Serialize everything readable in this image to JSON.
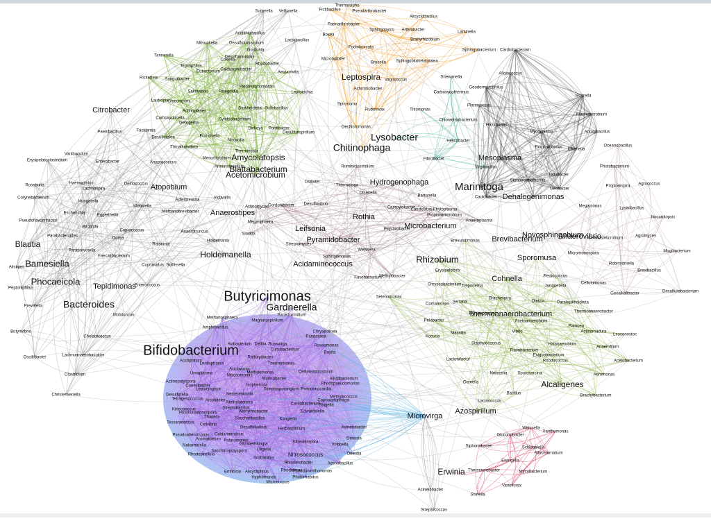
{
  "clusters": [
    {
      "color": "#7fb539",
      "labels": [
        "Acidithiobacillus",
        "Mitsuokella",
        "Desulfotomaculum",
        "Gordonia",
        "Tannerella",
        "Tepidiphilus",
        "Coxiella",
        "Desulfonauticus",
        "Rickettsia",
        "Sanguibacter",
        "Eubacterium",
        "Caldicoprobacter",
        "Rhodobacter",
        "Aequorivita",
        "Salinivibrio",
        "Finegoldia",
        "Pleomorphomonas",
        "Leptotrichia",
        "Lautropia",
        "Glycomyces",
        "Burkholderia",
        "Sulfobacillus",
        "Actinoplanes",
        "Carboxydocella",
        "Symbiobacterium",
        "Georgenia",
        "Dickeya",
        "Pontibacter",
        "Desulfurispirillum",
        "Francisella",
        "Nocardia",
        "Desulfotalea",
        "Thioalkalivibrio",
        "Thermincola",
        "Mesorhizobium",
        "Aneurinibacillus",
        "Amycolatopsis",
        "Blattabacterium",
        "Acetomicrobium"
      ]
    },
    {
      "color": "#f0a030",
      "labels": [
        "Thermosipho",
        "Fictibacillus",
        "Pseudarthrobacter",
        "Paenarthrobacter",
        "Sphingopyxis",
        "Bosea",
        "Arthrobacter",
        "Fodinicurvata",
        "Alicyclobacillus",
        "Bradyrhizobium",
        "Larkinella",
        "Microbulbifer",
        "Brucella",
        "Sphingobium",
        "Halotalea",
        "Leptospira",
        "Vagococcus",
        "Achromobacter",
        "Spirosoma",
        "Rubrivivax",
        "Dechloromonas",
        "Chitinophaga",
        "Sphingobacterium"
      ]
    },
    {
      "color": "#4fb0a0",
      "labels": [
        "Shewanella",
        "Carboxydothermus",
        "Thiomonas",
        "Chloracidobacterium",
        "Lysobacter",
        "Helicobacter",
        "Fibrobacter",
        "Virgibacillus"
      ]
    },
    {
      "color": "#555555",
      "labels": [
        "Cardiobacterium",
        "Alloiococcus",
        "Geodermatophilus",
        "Moorella",
        "Planococcus",
        "Marinimicrobium",
        "Anoxybacillus",
        "Halomonas",
        "Mycoplasma",
        "Ruminococcus",
        "Eikenella",
        "Mesoplasma",
        "Stenotrophomonas",
        "Iodobacter",
        "Caulobacter",
        "Marinitoga",
        "Dehalogenimonas",
        "Geobacter"
      ]
    },
    {
      "color": "#a0a0a0",
      "labels": [
        "Sutterella",
        "Veillonella",
        "Lactobacillus",
        "Citrobacter",
        "Facklamia",
        "Paenibacillus",
        "Variibaculum",
        "Erysipelatoclostridium",
        "Enterobacter",
        "Anaerococcus",
        "Roseburia",
        "Haemophilus",
        "Deinococcus",
        "Atopobium",
        "Lachnospira",
        "Corynebacterium",
        "Hungatella",
        "Adlercreutzia",
        "Victivallis",
        "Klebsiella",
        "Escherichia",
        "Eggerthella",
        "Pseudoflavonifractor",
        "Methanobrevibacter",
        "Anaerostipes",
        "Bilophila",
        "Coprococcus",
        "Parabacteroides",
        "Dorea",
        "Anaerotruncus",
        "Blautia",
        "Ralstonia",
        "Holdemania",
        "Paraprevotella",
        "Faecalibacterium",
        "Holdemanella",
        "Bamesiella",
        "Cupriavidus",
        "Sollinsella",
        "Alistipes",
        "Phocaeicola",
        "Tepidimonas",
        "Enterococcus",
        "Peptoniphilus",
        "Prevotella",
        "Bacteroides",
        "Mobiluncus",
        "Butyrivibrio",
        "Chelatococcus",
        "Oscillibacter",
        "Lachnoanaerobaculum",
        "Clostridium",
        "Christensenella"
      ]
    },
    {
      "color": "#b09098",
      "labels": [
        "Actinomyces",
        "Gordonibacter",
        "Desulfovibrio",
        "Megasphaera",
        "Dialister",
        "Ruminiclostridium",
        "Thermotoga",
        "Hydrogenophaga",
        "Olsenella",
        "Leifsonia",
        "Slackia",
        "Rothia",
        "Pyramidobacter",
        "Streptomyces",
        "Sphingomonas",
        "Acidaminococcus",
        "Weissella",
        "Campylobacter",
        "Candidatus Phytoplasma",
        "Bartonella",
        "Propionimicrobium",
        "Psychrobacter",
        "Microbacterium",
        "Anaeroplasma",
        "Fusobacterium",
        "Methylobacter"
      ]
    },
    {
      "color": "#c8b0b4",
      "labels": [
        "Oceanobacillus",
        "Photobacterium",
        "Propionispira",
        "Agrococcus",
        "Megamonas",
        "Lysinibacillus",
        "Nocardiopsis",
        "Novosphingobium",
        "Anaerovibrio",
        "Cellulosimicrobium",
        "Agromyces",
        "Brevibacterium",
        "Micromonospora",
        "Mogibacterium",
        "Robinsoniella",
        "Brevibacillus",
        "Cellulomonas",
        "Desulfurobacterium",
        "Geoalkalibacter"
      ]
    },
    {
      "color": "#9cc060",
      "labels": [
        "Rhizobium",
        "Sporomusa",
        "Brevundimonas",
        "Erysipelothrix",
        "Cohnella",
        "Jonquetella",
        "Pediococcus",
        "Chryseobacterium",
        "Treponema",
        "Selenomonas",
        "Brachyspira",
        "Dietzia",
        "Paraburkholderia",
        "Comamonas",
        "Serratia",
        "Hymenobacter",
        "Thermoanaerobacterium",
        "Acetoanaerobium",
        "Thermoanaerobacter",
        "Pelobacter",
        "Pantoea",
        "Actinomadura",
        "Massilia",
        "Vibrio",
        "Leuconostoc",
        "Kocuria",
        "Staphylococcus",
        "Halanaerobium",
        "Anaerofilum",
        "Flavobacterium",
        "Lactonifactor",
        "Exiguobacterium",
        "Rhodococcus",
        "Acetobacterium",
        "Neisseria",
        "Gemella",
        "Sporosarcina",
        "Aeromonas",
        "Bacillus",
        "Lactococcus",
        "Alcaligenes",
        "Brachybacterium",
        "Azospirillum"
      ]
    },
    {
      "color": "#a070e0",
      "labels": [
        "Butyricimonas",
        "Gardnerella",
        "Methanosphaera",
        "Paraclostridium",
        "Amphibacillus",
        "Magnetospirillum",
        "Chryseolinea",
        "Bifidobacterium",
        "Pandoraea",
        "Avibacterium",
        "Delftia",
        "Rossvirga",
        "Roseomonas",
        "Curtobacterium",
        "Basfia",
        "Rathayibacter",
        "Thermomonas",
        "Acidiphilium",
        "Lentisphaera",
        "Acidovorax",
        "Methylomonas",
        "Cellulosimicrobium",
        "Ureaplasma",
        "Nitrosomonas",
        "Marinobacter",
        "Isoptericola",
        "Nesterenkonia",
        "Streptosporangium",
        "Pseudonocardia",
        "Actinopolyspora",
        "Conexibacter",
        "Leptolyngbya",
        "Desulfurella",
        "Tetragenococcus",
        "Arcobacter",
        "Capnocytophaga",
        "Carnobacterium",
        "Shigella",
        "Methylotenera",
        "Streptobacillus",
        "Alterythrobacter",
        "Edwardsiella",
        "Kineococcus",
        "Promicromonospora",
        "Thauera",
        "Saccharibacillus",
        "Kangiella",
        "Cellvibrio",
        "Desulfobulbus",
        "Herbaspirillum",
        "Tessaracoccus",
        "Pseudoalteromonas",
        "Caldanaerobius",
        "Aromatoleum",
        "Polaromonas",
        "Elizabethkingia",
        "Kitasatospora",
        "Nakamurella",
        "Oligella",
        "Kribbella",
        "Devosia",
        "Rhodopirellula",
        "Saccharopolyspora",
        "Solibacillus",
        "Nitrosococcus",
        "Rhodanobacter",
        "Actinobacillus",
        "Pseudoxanthomonas",
        "Emticicia",
        "Alicycliphilus",
        "Rhodoferax",
        "Hyphomonas",
        "Photorhabdus",
        "Micrococcus",
        "Acinetobacter",
        "Orientia",
        "Methylococcus",
        "Alkalibacterium",
        "Rhodopseudomonas"
      ]
    },
    {
      "color": "#d83a60",
      "labels": [
        "Gluconobacter",
        "Weissella",
        "Xanthomonas",
        "Siphonobacter",
        "Schlegelella",
        "Allochromatium",
        "Ewingella",
        "Erwinia",
        "Thermaerobacter",
        "Mycobacterium",
        "Variovorax",
        "Shinella"
      ]
    },
    {
      "color": "#9a9a9a",
      "labels": [
        "Acinetobacter",
        "Streptococcus",
        "Microvirga"
      ]
    }
  ]
}
